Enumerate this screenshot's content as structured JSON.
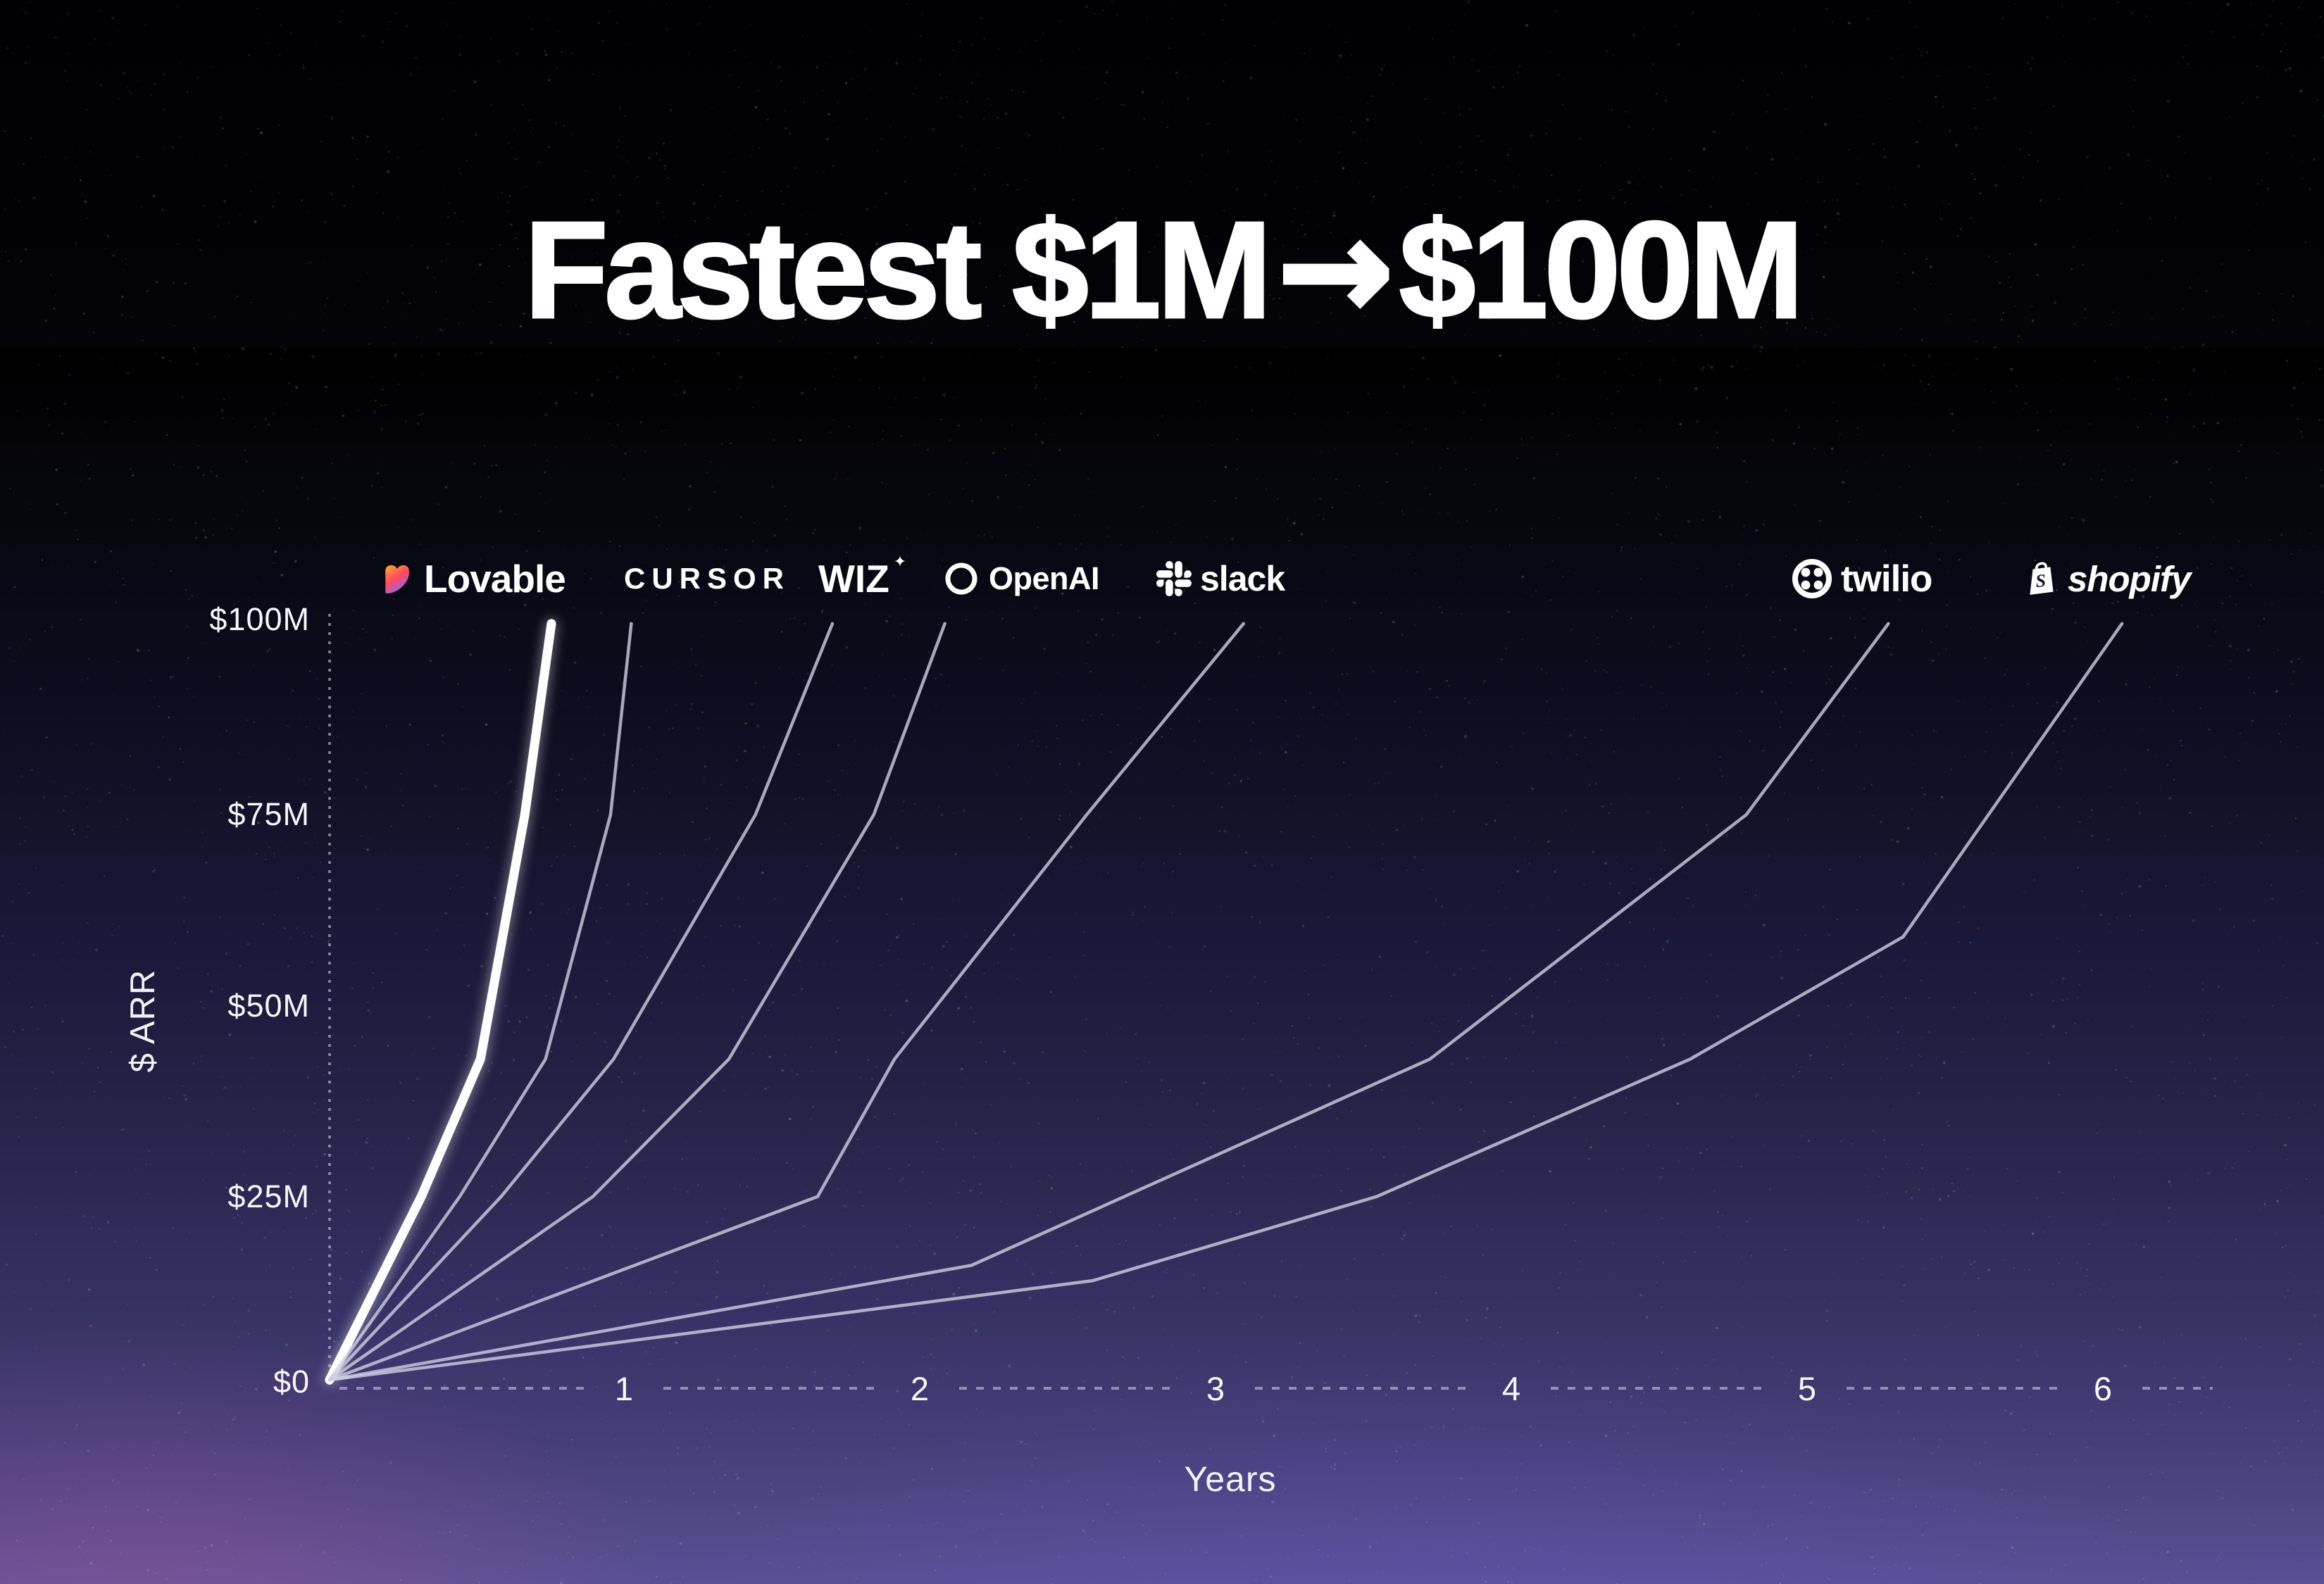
{
  "title": "Fastest $1M → $100M",
  "title_parts": {
    "pre": "Fastest $1M",
    "arrow": "→",
    "post": "$100M"
  },
  "y_axis": {
    "label": "$ ARR",
    "ticks": [
      "$100M",
      "$75M",
      "$50M",
      "$25M",
      "$0"
    ]
  },
  "x_axis": {
    "label": "Years",
    "ticks": [
      "1",
      "2",
      "3",
      "4",
      "5",
      "6"
    ]
  },
  "logos": [
    {
      "id": "lovable",
      "label": "Lovable"
    },
    {
      "id": "cursor",
      "label": "CURSOR"
    },
    {
      "id": "wiz",
      "label": "WIZ",
      "star": "✦"
    },
    {
      "id": "openai",
      "label": "OpenAI"
    },
    {
      "id": "slack",
      "label": "slack"
    },
    {
      "id": "twilio",
      "label": "twilio"
    },
    {
      "id": "shopify",
      "label": "shopify"
    }
  ],
  "colors": {
    "highlight_line": "#ffffff",
    "line": "rgba(206,207,226,0.8)",
    "axis": "rgba(228,228,242,0.5)",
    "background_top": "#010103",
    "background_bottom": "#575093",
    "lovable_gradient": [
      "#ff9f2e",
      "#ff4a64",
      "#7e6bff"
    ]
  },
  "chart_data": {
    "type": "line",
    "title": "Fastest $1M → $100M",
    "xlabel": "Years",
    "ylabel": "$ ARR",
    "xlim": [
      0,
      6.4
    ],
    "ylim": [
      0,
      100
    ],
    "x_ticks": [
      1,
      2,
      3,
      4,
      5,
      6
    ],
    "y_ticks_millions": [
      0,
      25,
      50,
      75,
      100
    ],
    "grid": false,
    "legend": "company logos along top, one per curve endpoint",
    "units": "ARR in $ millions vs years from $1M",
    "series": [
      {
        "name": "Lovable",
        "highlight": true,
        "points": [
          [
            0,
            1
          ],
          [
            0.31,
            25
          ],
          [
            0.51,
            43
          ],
          [
            0.66,
            75
          ],
          [
            0.75,
            100
          ]
        ]
      },
      {
        "name": "Cursor",
        "points": [
          [
            0,
            1
          ],
          [
            0.44,
            25
          ],
          [
            0.73,
            43
          ],
          [
            0.95,
            75
          ],
          [
            1.02,
            100
          ]
        ]
      },
      {
        "name": "Wiz",
        "points": [
          [
            0,
            1
          ],
          [
            0.58,
            25
          ],
          [
            0.96,
            43
          ],
          [
            1.44,
            75
          ],
          [
            1.7,
            100
          ]
        ]
      },
      {
        "name": "OpenAI",
        "points": [
          [
            0,
            1
          ],
          [
            0.89,
            25
          ],
          [
            1.35,
            43
          ],
          [
            1.84,
            75
          ],
          [
            2.08,
            100
          ]
        ]
      },
      {
        "name": "Slack",
        "points": [
          [
            0,
            1
          ],
          [
            1.65,
            25
          ],
          [
            1.91,
            43
          ],
          [
            2.56,
            75
          ],
          [
            3.09,
            100
          ]
        ]
      },
      {
        "name": "Twilio",
        "points": [
          [
            0,
            1
          ],
          [
            2.17,
            16
          ],
          [
            3.72,
            43
          ],
          [
            4.79,
            75
          ],
          [
            5.27,
            100
          ]
        ]
      },
      {
        "name": "Shopify",
        "points": [
          [
            0,
            1
          ],
          [
            2.58,
            14
          ],
          [
            3.54,
            25
          ],
          [
            4.6,
            43
          ],
          [
            5.32,
            59
          ],
          [
            6.06,
            100
          ]
        ]
      }
    ]
  }
}
